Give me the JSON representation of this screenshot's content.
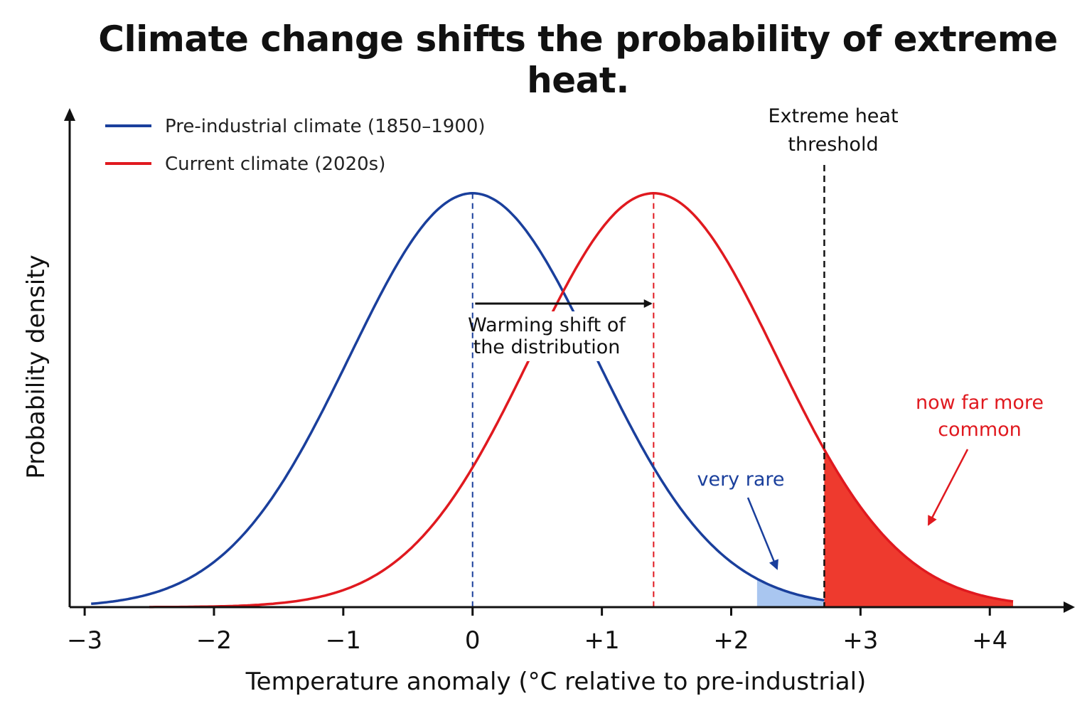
{
  "chart_data": {
    "type": "line",
    "title": "Climate change shifts the probability of extreme heat.",
    "xlabel": "Temperature anomaly (°C relative to pre-industrial)",
    "ylabel": "Probability density",
    "xlim": [
      -3.05,
      4.4
    ],
    "ylim": [
      0,
      0.44
    ],
    "ticks": [
      {
        "value": -3,
        "label": "−3"
      },
      {
        "value": -2,
        "label": "−2"
      },
      {
        "value": -1,
        "label": "−1"
      },
      {
        "value": 0,
        "label": "0"
      },
      {
        "value": 1,
        "label": "+1"
      },
      {
        "value": 2,
        "label": "+2"
      },
      {
        "value": 3,
        "label": "+3"
      },
      {
        "value": 4,
        "label": "+4"
      }
    ],
    "grid": false,
    "legend_position": "top-left",
    "series": [
      {
        "name": "Pre-industrial climate (1850–1900)",
        "color": "#1a3f9c",
        "mean": 0.0,
        "sd": 0.95,
        "x_start": -2.95,
        "x_end": 2.72
      },
      {
        "name": "Current climate (2020s)",
        "color": "#e0191f",
        "mean": 1.4,
        "sd": 0.95,
        "x_start": -2.5,
        "x_end": 4.18
      }
    ],
    "threshold": {
      "value": 2.72,
      "label_line1": "Extreme heat",
      "label_line2": "threshold",
      "color": "#111111"
    },
    "shaded_regions": [
      {
        "series": 0,
        "from": 2.2,
        "to": 2.72,
        "color": "#a9c6f0"
      },
      {
        "series": 1,
        "from": 2.72,
        "to": 4.18,
        "color": "#ee3a2e"
      }
    ],
    "annotations": {
      "shift": {
        "from": 0.02,
        "to": 1.38,
        "line1": "Warming shift of",
        "line2": "the distribution",
        "color": "#111111"
      },
      "rare": {
        "text": "very rare",
        "color": "#1a3f9c"
      },
      "common": {
        "line1": "now far more",
        "line2": "common",
        "color": "#e0191f"
      }
    }
  }
}
